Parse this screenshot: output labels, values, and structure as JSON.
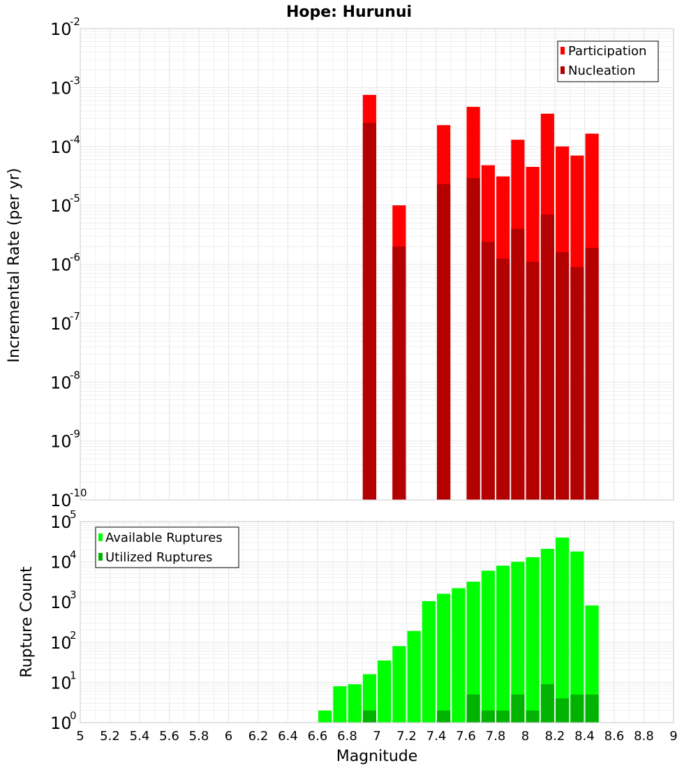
{
  "chart_title": "Hope: Hurunui",
  "colors": {
    "participation": "#ff0000",
    "nucleation": "#b30000",
    "available": "#00ff00",
    "utilized": "#00b300",
    "grid": "#e6e6e6",
    "frame": "#c8c8c8"
  },
  "chart_data": [
    {
      "type": "bar",
      "title": "Hope: Hurunui",
      "xlabel": "",
      "ylabel": "Incremental Rate (per yr)",
      "yscale": "log",
      "xlim": [
        5,
        9
      ],
      "ylim": [
        1e-10,
        0.01
      ],
      "grid": true,
      "legend_position": "top-right",
      "y_ticks": [
        {
          "value": 1e-10,
          "base": "10",
          "exp": "-10"
        },
        {
          "value": 1e-09,
          "base": "10",
          "exp": "-9"
        },
        {
          "value": 1e-08,
          "base": "10",
          "exp": "-8"
        },
        {
          "value": 1e-07,
          "base": "10",
          "exp": "-7"
        },
        {
          "value": 1e-06,
          "base": "10",
          "exp": "-6"
        },
        {
          "value": 1e-05,
          "base": "10",
          "exp": "-5"
        },
        {
          "value": 0.0001,
          "base": "10",
          "exp": "-4"
        },
        {
          "value": 0.001,
          "base": "10",
          "exp": "-3"
        },
        {
          "value": 0.01,
          "base": "10",
          "exp": "-2"
        }
      ],
      "series": [
        {
          "name": "Participation",
          "color": "#ff0000",
          "points": [
            {
              "x": 6.95,
              "y": 0.00075
            },
            {
              "x": 7.15,
              "y": 1e-05
            },
            {
              "x": 7.45,
              "y": 0.00023
            },
            {
              "x": 7.65,
              "y": 0.00047
            },
            {
              "x": 7.75,
              "y": 4.8e-05
            },
            {
              "x": 7.85,
              "y": 3.1e-05
            },
            {
              "x": 7.95,
              "y": 0.00013
            },
            {
              "x": 8.05,
              "y": 4.5e-05
            },
            {
              "x": 8.15,
              "y": 0.00036
            },
            {
              "x": 8.25,
              "y": 0.0001
            },
            {
              "x": 8.35,
              "y": 7e-05
            },
            {
              "x": 8.45,
              "y": 0.000165
            }
          ]
        },
        {
          "name": "Nucleation",
          "color": "#b30000",
          "points": [
            {
              "x": 6.95,
              "y": 0.00025
            },
            {
              "x": 7.15,
              "y": 2e-06
            },
            {
              "x": 7.45,
              "y": 2.3e-05
            },
            {
              "x": 7.65,
              "y": 2.9e-05
            },
            {
              "x": 7.75,
              "y": 2.4e-06
            },
            {
              "x": 7.85,
              "y": 1.25e-06
            },
            {
              "x": 7.95,
              "y": 4e-06
            },
            {
              "x": 8.05,
              "y": 1.1e-06
            },
            {
              "x": 8.15,
              "y": 7e-06
            },
            {
              "x": 8.25,
              "y": 1.6e-06
            },
            {
              "x": 8.35,
              "y": 9e-07
            },
            {
              "x": 8.45,
              "y": 1.9e-06
            }
          ]
        }
      ]
    },
    {
      "type": "bar",
      "title": "",
      "xlabel": "Magnitude",
      "ylabel": "Rupture Count",
      "yscale": "log",
      "xlim": [
        5,
        9
      ],
      "ylim": [
        1,
        100000.0
      ],
      "grid": true,
      "legend_position": "top-left",
      "x_ticks": [
        "5",
        "5.2",
        "5.4",
        "5.6",
        "5.8",
        "6",
        "6.2",
        "6.4",
        "6.6",
        "6.8",
        "7",
        "7.2",
        "7.4",
        "7.6",
        "7.8",
        "8",
        "8.2",
        "8.4",
        "8.6",
        "8.8",
        "9"
      ],
      "y_ticks": [
        {
          "value": 1,
          "base": "10",
          "exp": "0"
        },
        {
          "value": 10,
          "base": "10",
          "exp": "1"
        },
        {
          "value": 100,
          "base": "10",
          "exp": "2"
        },
        {
          "value": 1000,
          "base": "10",
          "exp": "3"
        },
        {
          "value": 10000,
          "base": "10",
          "exp": "4"
        },
        {
          "value": 100000,
          "base": "10",
          "exp": "5"
        }
      ],
      "series": [
        {
          "name": "Available Ruptures",
          "color": "#00ff00",
          "points": [
            {
              "x": 6.45,
              "y": 1
            },
            {
              "x": 6.55,
              "y": 0
            },
            {
              "x": 6.65,
              "y": 2
            },
            {
              "x": 6.75,
              "y": 8
            },
            {
              "x": 6.85,
              "y": 9
            },
            {
              "x": 6.95,
              "y": 16
            },
            {
              "x": 7.05,
              "y": 35
            },
            {
              "x": 7.15,
              "y": 80
            },
            {
              "x": 7.25,
              "y": 190
            },
            {
              "x": 7.35,
              "y": 1050
            },
            {
              "x": 7.45,
              "y": 1600
            },
            {
              "x": 7.55,
              "y": 2200
            },
            {
              "x": 7.65,
              "y": 3200
            },
            {
              "x": 7.75,
              "y": 6000
            },
            {
              "x": 7.85,
              "y": 8000
            },
            {
              "x": 7.95,
              "y": 10000
            },
            {
              "x": 8.05,
              "y": 13000
            },
            {
              "x": 8.15,
              "y": 21000
            },
            {
              "x": 8.25,
              "y": 40000
            },
            {
              "x": 8.35,
              "y": 18000
            },
            {
              "x": 8.45,
              "y": 820
            }
          ]
        },
        {
          "name": "Utilized Ruptures",
          "color": "#00b300",
          "points": [
            {
              "x": 6.95,
              "y": 2
            },
            {
              "x": 7.15,
              "y": 1
            },
            {
              "x": 7.45,
              "y": 2
            },
            {
              "x": 7.65,
              "y": 5
            },
            {
              "x": 7.75,
              "y": 2
            },
            {
              "x": 7.85,
              "y": 2
            },
            {
              "x": 7.95,
              "y": 5
            },
            {
              "x": 8.05,
              "y": 2
            },
            {
              "x": 8.15,
              "y": 9
            },
            {
              "x": 8.25,
              "y": 4
            },
            {
              "x": 8.35,
              "y": 5
            },
            {
              "x": 8.45,
              "y": 5
            }
          ]
        }
      ]
    }
  ]
}
